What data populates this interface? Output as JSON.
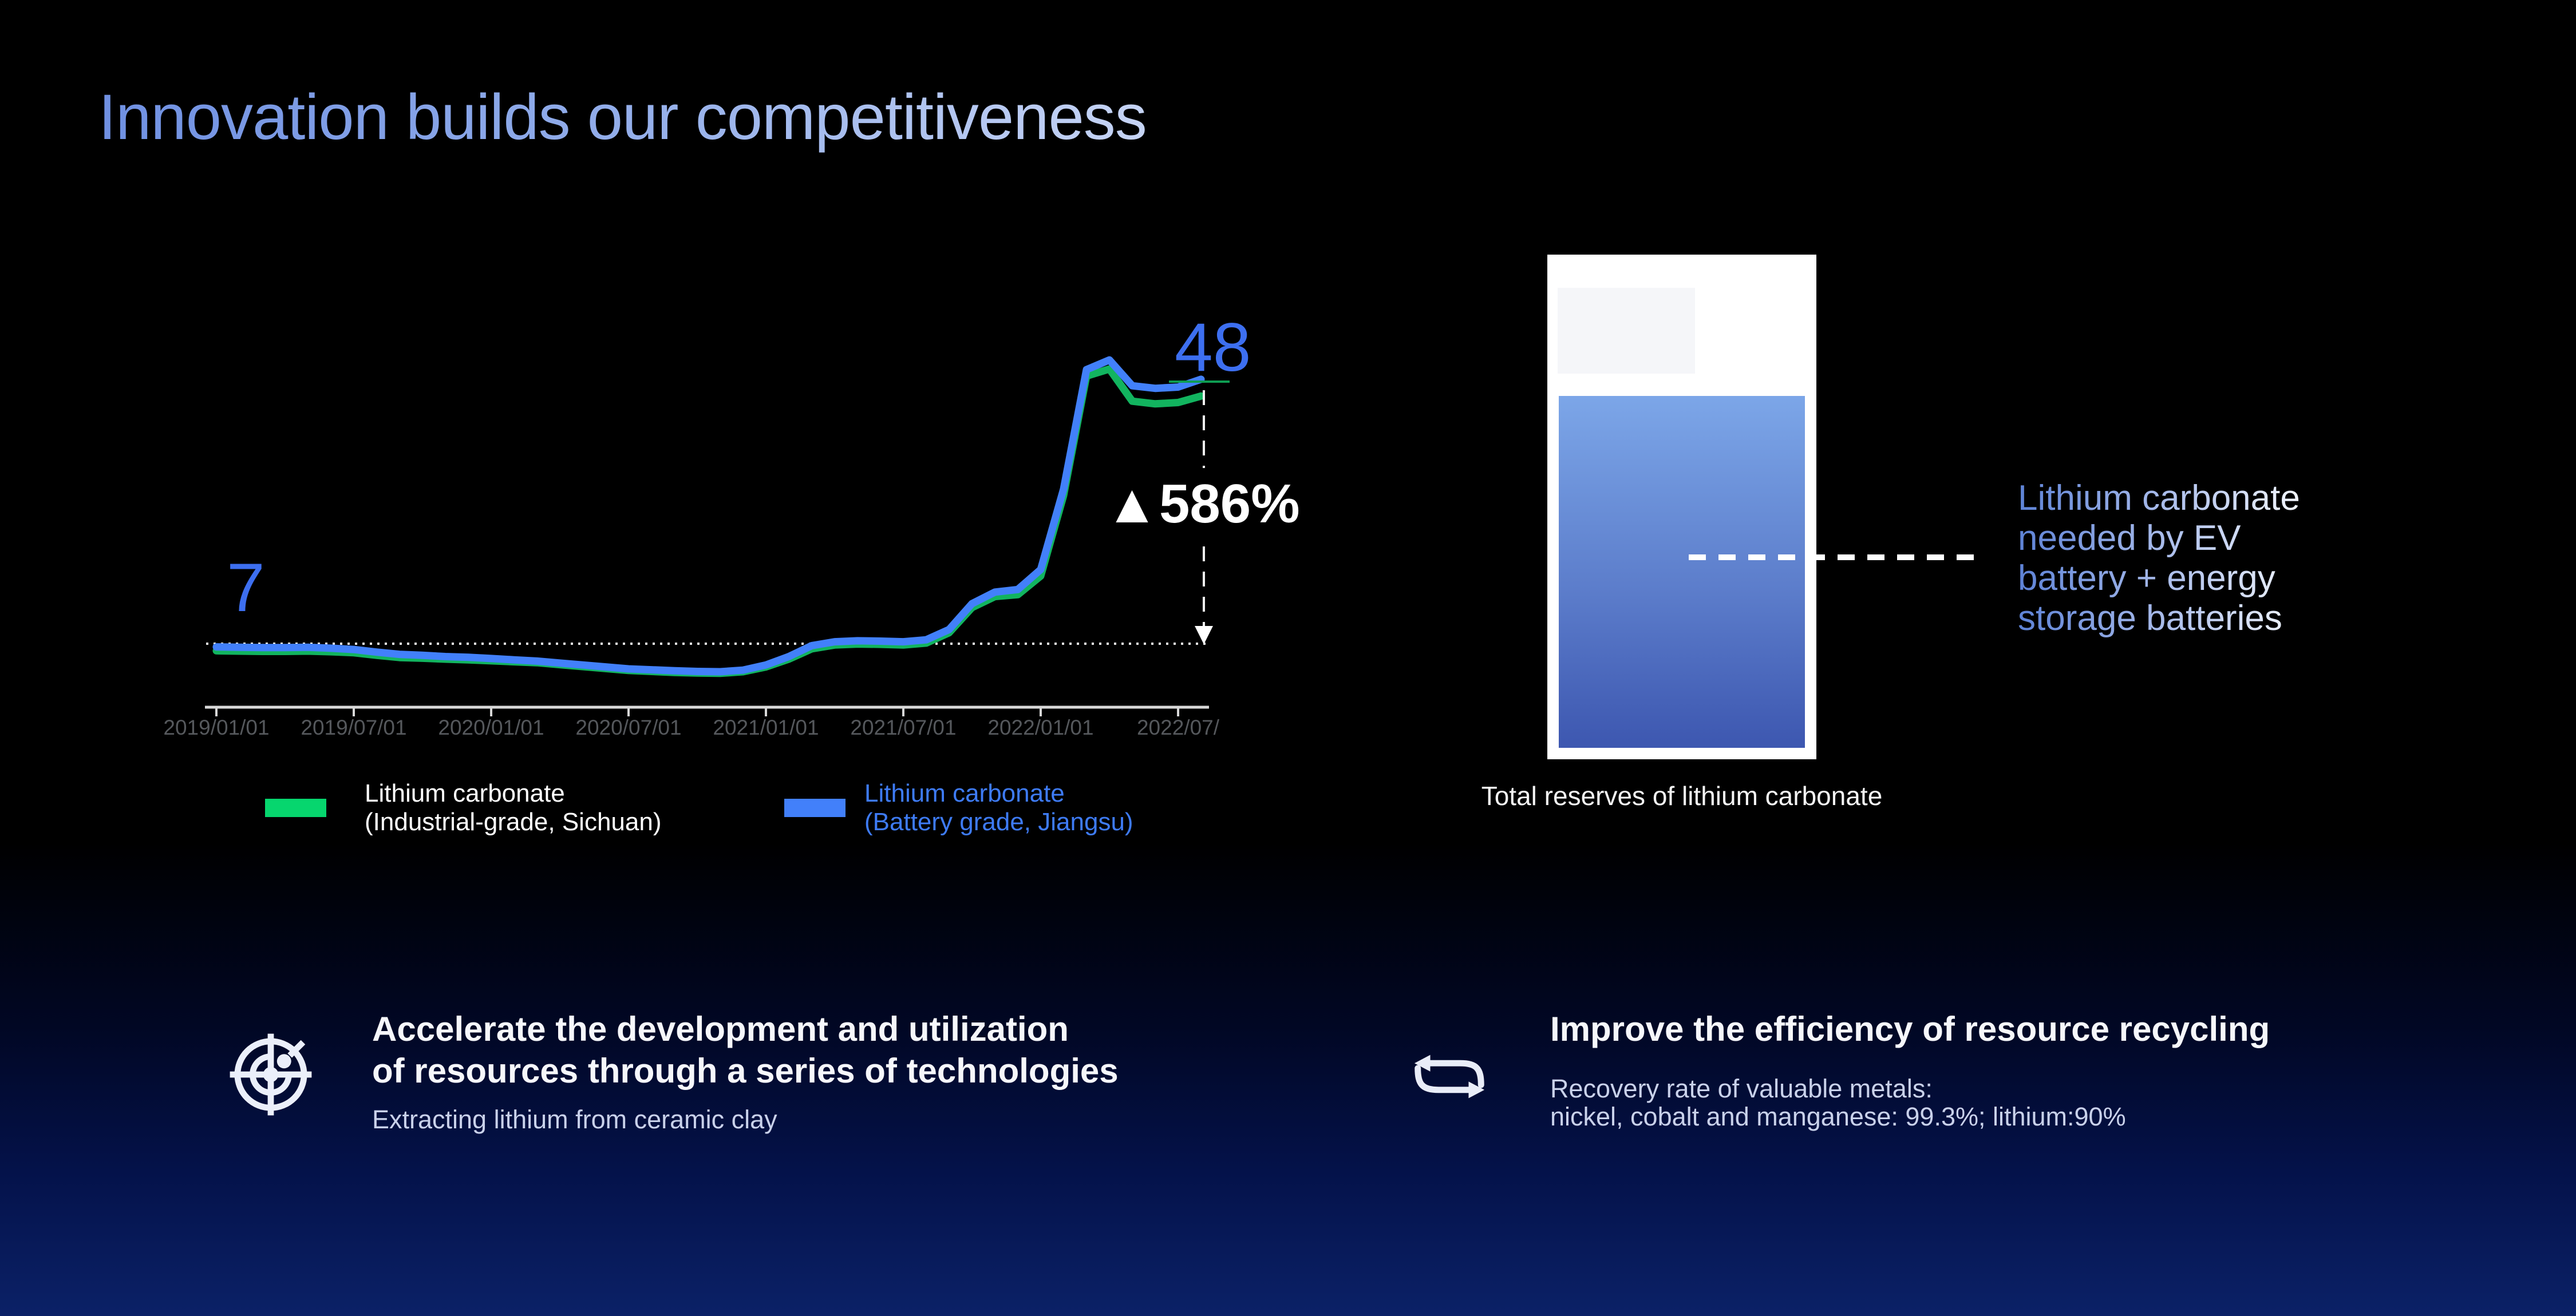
{
  "slide": {
    "title": "Innovation builds our competitiveness"
  },
  "colors": {
    "accent_blue": "#3D6FF0",
    "line_blue": "#4280FA",
    "line_green": "#12B45F",
    "legend_swatch_green": "#06D66E",
    "legend_text_blue": "#3E7BF5",
    "axis_gray": "#D8D8D8",
    "tick_label_gray": "#55585C",
    "background_bottom_navy": "#0B2167"
  },
  "chart_data": [
    {
      "type": "line",
      "title": "",
      "xlabel": "",
      "ylabel": "",
      "x_start": "2019/01/01",
      "x_interval": "monthly",
      "n_points": 44,
      "x_tick_labels": [
        "2019/01/01",
        "2019/07/01",
        "2020/01/01",
        "2020/07/01",
        "2021/01/01",
        "2021/07/01",
        "2022/01/01",
        "2022/07/"
      ],
      "ylim": [
        0,
        55
      ],
      "grid": false,
      "reference_line_value": 7,
      "start_label": "7",
      "end_label": "48",
      "change_annotation": "▲586%",
      "legend_position": "bottom",
      "series": [
        {
          "name": "Lithium carbonate (Industrial-grade, Sichuan)",
          "color": "#12B45F",
          "values": [
            5.9,
            5.85,
            5.8,
            5.8,
            5.85,
            5.75,
            5.6,
            5.2,
            4.85,
            4.75,
            4.6,
            4.5,
            4.35,
            4.2,
            4.05,
            3.75,
            3.45,
            3.15,
            2.85,
            2.7,
            2.55,
            2.45,
            2.4,
            2.65,
            3.4,
            4.6,
            6.2,
            6.8,
            6.95,
            6.9,
            6.8,
            7.1,
            8.7,
            12.6,
            14.3,
            14.6,
            17.5,
            30.0,
            48.5,
            49.6,
            44.6,
            44.2,
            44.4,
            45.4
          ]
        },
        {
          "name": "Lithium carbonate (Battery grade, Jiangsu)",
          "color": "#4280FA",
          "values": [
            6.5,
            6.45,
            6.4,
            6.4,
            6.45,
            6.3,
            6.1,
            5.7,
            5.35,
            5.2,
            5.0,
            4.9,
            4.7,
            4.5,
            4.3,
            4.0,
            3.7,
            3.4,
            3.1,
            2.95,
            2.8,
            2.7,
            2.65,
            2.9,
            3.7,
            5.0,
            6.7,
            7.3,
            7.45,
            7.4,
            7.3,
            7.6,
            9.2,
            13.2,
            15.0,
            15.4,
            18.5,
            31.0,
            49.5,
            51.0,
            47.0,
            46.6,
            46.8,
            48.0
          ]
        }
      ],
      "legend": [
        {
          "label_line1": "Lithium carbonate",
          "label_line2": "(Industrial-grade, Sichuan)",
          "swatch_color": "#06D66E"
        },
        {
          "label_line1": "Lithium carbonate",
          "label_line2": "(Battery grade, Jiangsu)",
          "swatch_color": "#4280FA"
        }
      ]
    },
    {
      "type": "pictorial-fill",
      "caption": "Total reserves of lithium carbonate",
      "fill_fraction": 0.73,
      "callout_lines": [
        "Lithium carbonate",
        "needed by EV",
        "battery + energy",
        "storage batteries"
      ]
    }
  ],
  "footer": {
    "left": {
      "icon": "radar-target-icon",
      "heading_line1": "Accelerate the development and utilization",
      "heading_line2": "of resources through a series of technologies",
      "subtext": "Extracting lithium from ceramic clay"
    },
    "right": {
      "icon": "recycle-loop-icon",
      "heading": "Improve the efficiency of resource recycling",
      "subtext_line1": "Recovery rate of valuable metals:",
      "subtext_line2": "nickel, cobalt and  manganese: 99.3%; lithium:90%"
    }
  }
}
